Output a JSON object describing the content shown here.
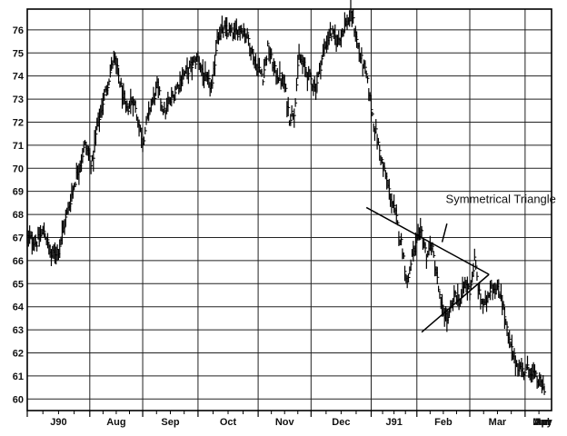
{
  "chart_data": {
    "type": "bar",
    "subtype": "ohlc",
    "title": "",
    "xlabel": "",
    "ylabel": "",
    "ylim": [
      59.5,
      76.9
    ],
    "y_ticks": [
      60,
      61,
      62,
      63,
      64,
      65,
      66,
      67,
      68,
      69,
      70,
      71,
      72,
      73,
      74,
      75,
      76
    ],
    "x_tick_labels": [
      "J90",
      "Aug",
      "Sep",
      "Oct",
      "Nov",
      "Dec",
      "J91",
      "Feb",
      "Mar",
      "Apr",
      "May",
      "Jun",
      "Jul"
    ],
    "grid": true,
    "series": [
      {
        "anchors": [
          [
            0,
            67.0
          ],
          [
            8,
            66.8
          ],
          [
            14,
            67.3
          ],
          [
            20,
            66.2
          ],
          [
            26,
            66.5
          ],
          [
            32,
            67.8
          ],
          [
            40,
            69.5
          ],
          [
            48,
            71.0
          ],
          [
            54,
            70.2
          ],
          [
            58,
            71.8
          ],
          [
            66,
            73.5
          ],
          [
            72,
            74.8
          ],
          [
            76,
            74.0
          ],
          [
            82,
            72.5
          ],
          [
            88,
            73.0
          ],
          [
            96,
            71.2
          ],
          [
            102,
            72.6
          ],
          [
            108,
            73.5
          ],
          [
            114,
            72.4
          ],
          [
            120,
            73.0
          ],
          [
            128,
            73.9
          ],
          [
            136,
            74.4
          ],
          [
            142,
            74.8
          ],
          [
            148,
            73.8
          ],
          [
            154,
            73.5
          ],
          [
            158,
            75.8
          ],
          [
            164,
            76.0
          ],
          [
            172,
            75.8
          ],
          [
            178,
            76.1
          ],
          [
            184,
            75.6
          ],
          [
            190,
            74.5
          ],
          [
            196,
            74.0
          ],
          [
            200,
            75.2
          ],
          [
            206,
            74.2
          ],
          [
            214,
            73.6
          ],
          [
            218,
            72.2
          ],
          [
            222,
            72.5
          ],
          [
            226,
            74.8
          ],
          [
            234,
            74.0
          ],
          [
            240,
            73.5
          ],
          [
            246,
            75.0
          ],
          [
            252,
            75.9
          ],
          [
            258,
            75.5
          ],
          [
            264,
            76.2
          ],
          [
            270,
            76.6
          ],
          [
            276,
            75.0
          ],
          [
            282,
            74.0
          ],
          [
            288,
            72.0
          ],
          [
            294,
            70.5
          ],
          [
            300,
            69.2
          ],
          [
            306,
            68.0
          ],
          [
            312,
            66.5
          ],
          [
            316,
            65.0
          ],
          [
            320,
            66.2
          ],
          [
            324,
            66.8
          ],
          [
            328,
            67.2
          ],
          [
            332,
            66.2
          ],
          [
            336,
            66.7
          ],
          [
            340,
            65.5
          ],
          [
            344,
            64.0
          ],
          [
            350,
            63.4
          ],
          [
            356,
            64.6
          ],
          [
            360,
            64.2
          ],
          [
            364,
            65.0
          ],
          [
            368,
            64.7
          ],
          [
            372,
            66.0
          ],
          [
            376,
            64.5
          ],
          [
            380,
            64.0
          ],
          [
            386,
            65.0
          ],
          [
            390,
            64.7
          ],
          [
            394,
            64.6
          ],
          [
            400,
            62.6
          ],
          [
            406,
            61.6
          ],
          [
            412,
            61.2
          ],
          [
            418,
            61.3
          ],
          [
            424,
            60.8
          ],
          [
            430,
            60.5
          ]
        ]
      }
    ],
    "annotations": [
      {
        "text": "Symmetrical Triangle",
        "at": [
          348,
          68.5
        ]
      }
    ],
    "pattern_lines": [
      {
        "name": "upper-trendline",
        "from": [
          282,
          68.3
        ],
        "to": [
          384,
          65.4
        ]
      },
      {
        "name": "lower-trendline",
        "from": [
          328,
          62.9
        ],
        "to": [
          384,
          65.4
        ]
      },
      {
        "name": "annotation-pointer",
        "from": [
          349,
          67.6
        ],
        "to": [
          345,
          66.8
        ]
      }
    ]
  }
}
